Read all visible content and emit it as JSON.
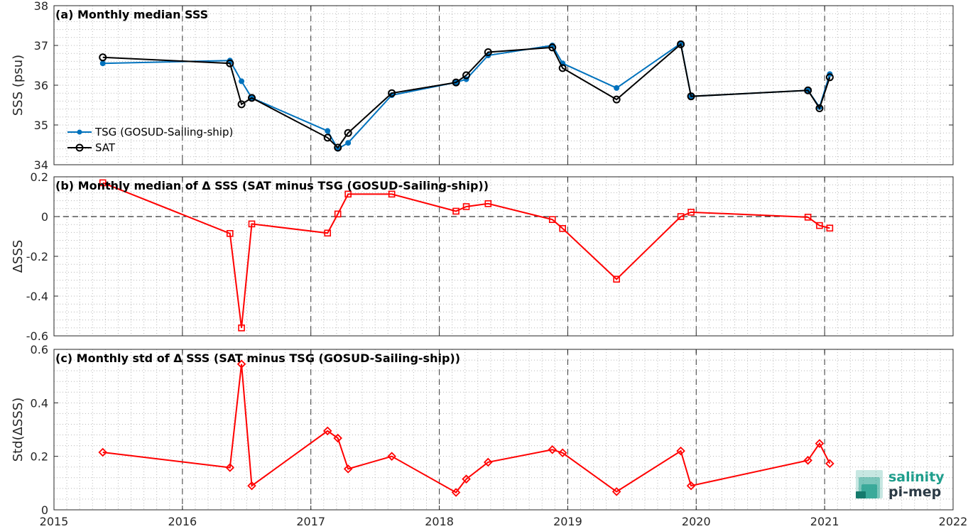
{
  "chart_data": [
    {
      "type": "line",
      "title": "(a) Monthly median SSS",
      "ylabel": "SSS (psu)",
      "xlim": [
        2015,
        2022
      ],
      "ylim": [
        34,
        38
      ],
      "yticks": [
        "34",
        "35",
        "36",
        "37",
        "38"
      ],
      "grid": true,
      "legend_position": "bottom-left",
      "series": [
        {
          "name": "TSG (GOSUD-Sailing-ship)",
          "color": "#0072bd",
          "marker": "dot",
          "x": [
            2015.38,
            2016.37,
            2016.46,
            2016.54,
            2017.13,
            2017.21,
            2017.29,
            2017.63,
            2018.13,
            2018.21,
            2018.38,
            2018.88,
            2018.96,
            2019.38,
            2019.88,
            2019.96,
            2020.87,
            2020.96,
            2021.04
          ],
          "values": [
            36.55,
            36.62,
            36.1,
            35.68,
            34.85,
            34.4,
            34.55,
            35.75,
            36.07,
            36.15,
            36.75,
            37.0,
            36.55,
            35.93,
            37.05,
            35.72,
            35.87,
            35.45,
            36.28
          ]
        },
        {
          "name": "SAT",
          "color": "#000000",
          "marker": "circle",
          "x": [
            2015.38,
            2016.37,
            2016.46,
            2016.54,
            2017.13,
            2017.21,
            2017.29,
            2017.63,
            2018.13,
            2018.21,
            2018.38,
            2018.88,
            2018.96,
            2019.38,
            2019.88,
            2019.96,
            2020.87,
            2020.96,
            2021.04
          ],
          "values": [
            36.7,
            36.55,
            35.52,
            35.68,
            34.68,
            34.43,
            34.8,
            35.8,
            36.07,
            36.25,
            36.83,
            36.95,
            36.43,
            35.64,
            37.03,
            35.72,
            35.87,
            35.42,
            36.2
          ]
        }
      ]
    },
    {
      "type": "line",
      "title": "(b) Monthly median of Δ SSS (SAT minus TSG (GOSUD-Sailing-ship))",
      "ylabel": "ΔSSS",
      "xlim": [
        2015,
        2022
      ],
      "ylim": [
        -0.6,
        0.2
      ],
      "yticks": [
        "-0.6",
        "-0.4",
        "-0.2",
        "0",
        "0.2"
      ],
      "grid": true,
      "zero_line": true,
      "series": [
        {
          "color": "#ff0000",
          "marker": "square",
          "x": [
            2015.38,
            2016.37,
            2016.46,
            2016.54,
            2017.13,
            2017.21,
            2017.29,
            2017.63,
            2018.13,
            2018.21,
            2018.38,
            2018.88,
            2018.96,
            2019.38,
            2019.88,
            2019.96,
            2020.87,
            2020.96,
            2021.04
          ],
          "values": [
            0.17,
            -0.085,
            -0.56,
            -0.037,
            -0.083,
            0.013,
            0.113,
            0.113,
            0.027,
            0.05,
            0.065,
            -0.015,
            -0.06,
            -0.315,
            0.0,
            0.022,
            -0.003,
            -0.045,
            -0.058
          ]
        }
      ]
    },
    {
      "type": "line",
      "title": "(c) Monthly std of Δ SSS (SAT minus TSG (GOSUD-Sailing-ship))",
      "ylabel": "Std(ΔSSS)",
      "xlim": [
        2015,
        2022
      ],
      "ylim": [
        0,
        0.6
      ],
      "yticks": [
        "0",
        "0.2",
        "0.4",
        "0.6"
      ],
      "xticks": [
        "2015",
        "2016",
        "2017",
        "2018",
        "2019",
        "2020",
        "2021",
        "2022"
      ],
      "grid": true,
      "series": [
        {
          "color": "#ff0000",
          "marker": "diamond",
          "x": [
            2015.38,
            2016.37,
            2016.46,
            2016.54,
            2017.13,
            2017.21,
            2017.29,
            2017.63,
            2018.13,
            2018.21,
            2018.38,
            2018.88,
            2018.96,
            2019.38,
            2019.88,
            2019.96,
            2020.87,
            2020.96,
            2021.04
          ],
          "values": [
            0.215,
            0.158,
            0.545,
            0.09,
            0.295,
            0.268,
            0.153,
            0.2,
            0.065,
            0.115,
            0.178,
            0.225,
            0.213,
            0.068,
            0.22,
            0.09,
            0.185,
            0.248,
            0.173
          ]
        }
      ]
    }
  ],
  "logo": {
    "line1": "salinity",
    "line2": "pi-mep",
    "color1": "#1f9e8c",
    "color2": "#2b3a45"
  }
}
